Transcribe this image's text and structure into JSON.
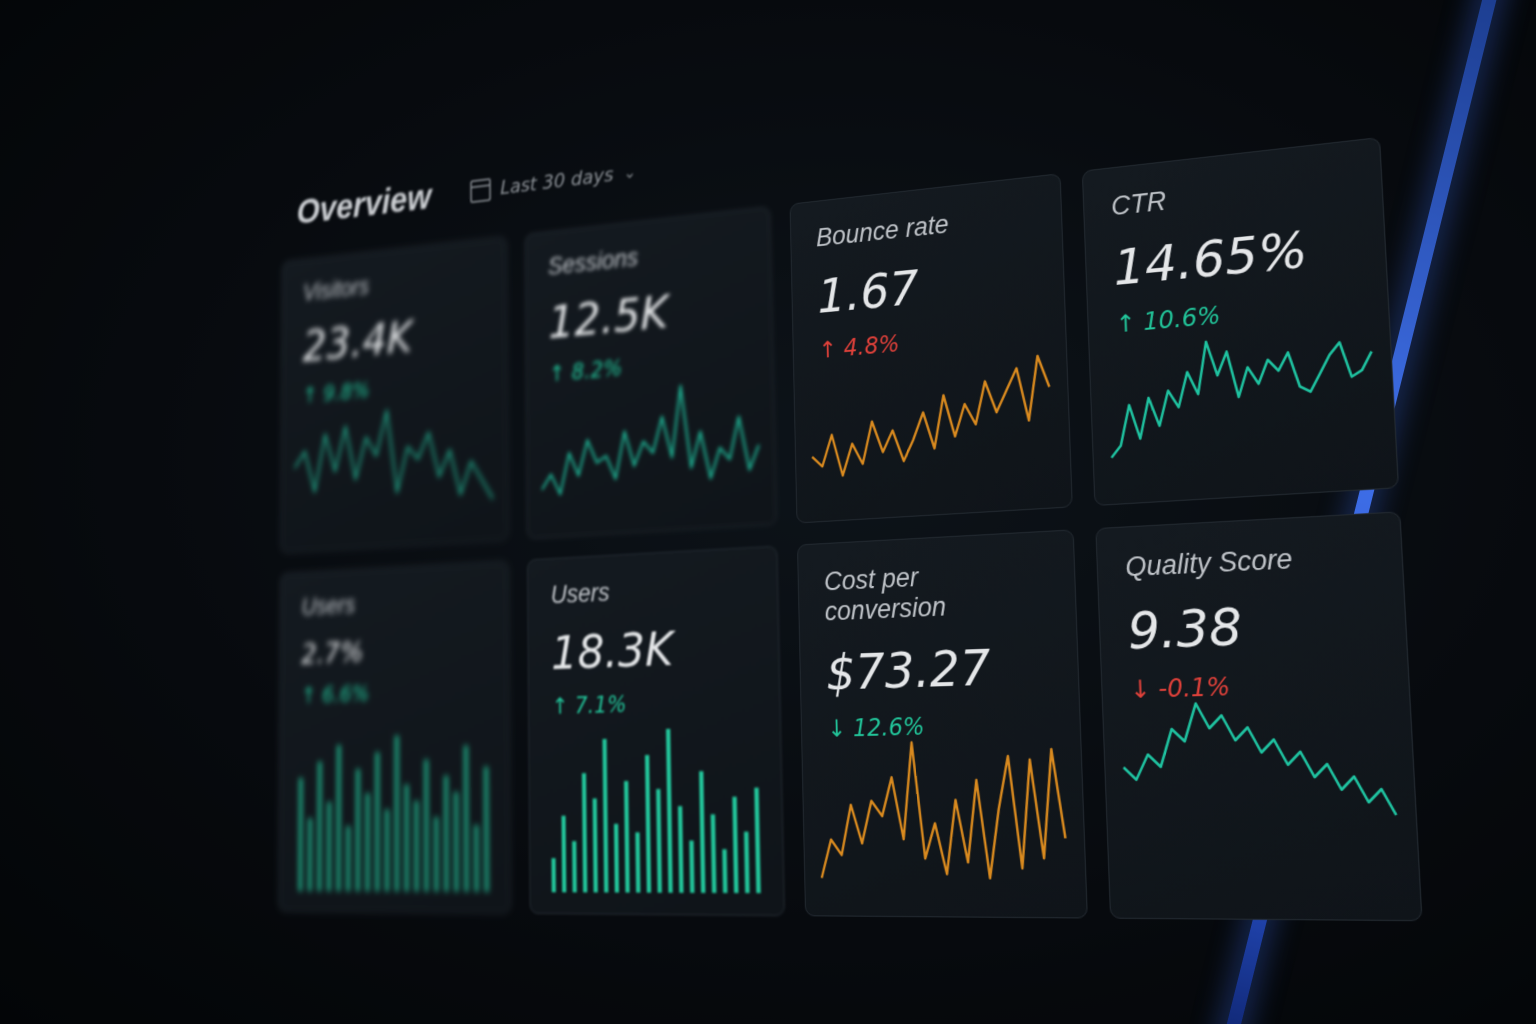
{
  "header": {
    "title": "Overview",
    "date_range": "Last 30 days"
  },
  "icons": {
    "calendar": "calendar-icon",
    "chevron": "chevron-down-icon",
    "up": "arrow-up-icon",
    "down": "arrow-down-icon"
  },
  "colors": {
    "green": "#22c59a",
    "red": "#e0413a",
    "orange": "#d98a1f",
    "accent_blue": "#3f6fe8"
  },
  "cards": [
    {
      "label": "Visitors",
      "value": "23.4K",
      "delta": "↑ 9.8%",
      "trend": "up-good",
      "chart": "line",
      "color": "#22a88a",
      "series": [
        50,
        55,
        42,
        60,
        48,
        62,
        45,
        58,
        52,
        66,
        40,
        54,
        50,
        58,
        44,
        52,
        38,
        48,
        42,
        36
      ]
    },
    {
      "label": "Sessions",
      "value": "12.5K",
      "delta": "↑ 8.2%",
      "trend": "up-good",
      "chart": "line",
      "color": "#1fb596",
      "series": [
        40,
        45,
        38,
        52,
        44,
        56,
        48,
        50,
        42,
        58,
        46,
        54,
        50,
        62,
        48,
        72,
        44,
        56,
        40,
        50,
        46,
        60,
        42,
        50
      ]
    },
    {
      "label": "Bounce rate",
      "value": "1.67",
      "delta": "↑ 4.8%",
      "trend": "up-bad",
      "chart": "line",
      "color": "#d98a1f",
      "series": [
        48,
        46,
        52,
        44,
        50,
        46,
        54,
        48,
        52,
        46,
        50,
        55,
        48,
        58,
        50,
        56,
        52,
        60,
        54,
        58,
        62,
        52,
        64,
        58
      ]
    },
    {
      "label": "CTR",
      "value": "14.65%",
      "delta": "↑ 10.6%",
      "trend": "up-good",
      "chart": "line",
      "color": "#1fc2a0",
      "series": [
        40,
        44,
        58,
        46,
        60,
        50,
        62,
        56,
        68,
        60,
        78,
        66,
        74,
        58,
        68,
        62,
        70,
        66,
        72,
        60,
        58,
        64,
        70,
        74,
        62,
        64,
        70
      ]
    },
    {
      "label": "Users",
      "value": "2.7%",
      "delta": "↑ 6.6%",
      "trend": "up-good",
      "chart": "bar",
      "color": "#1fa884",
      "series": [
        70,
        45,
        80,
        55,
        90,
        40,
        75,
        60,
        85,
        50,
        95,
        65,
        55,
        80,
        45,
        70,
        60,
        88,
        40,
        75
      ]
    },
    {
      "label": "Users",
      "value": "18.3K",
      "delta": "↑ 7.1%",
      "trend": "up-good",
      "chart": "bar",
      "color": "#22c59a",
      "series": [
        20,
        45,
        30,
        70,
        55,
        90,
        40,
        65,
        35,
        80,
        60,
        95,
        50,
        30,
        70,
        45,
        25,
        55,
        35,
        60
      ]
    },
    {
      "label": "Cost per conversion",
      "value": "$73.27",
      "delta": "↓ 12.6%",
      "trend": "down-good",
      "chart": "line",
      "color": "#d98a1f",
      "series": [
        20,
        40,
        32,
        58,
        38,
        60,
        52,
        72,
        40,
        90,
        30,
        48,
        22,
        60,
        28,
        70,
        20,
        55,
        82,
        25,
        80,
        30,
        85,
        40
      ]
    },
    {
      "label": "Quality Score",
      "value": "9.38",
      "delta": "↓ -0.1%",
      "trend": "down-bad",
      "chart": "line",
      "color": "#1fc2a0",
      "series": [
        55,
        54,
        56,
        55,
        58,
        57,
        60,
        58,
        59,
        57,
        58,
        56,
        57,
        55,
        56,
        54,
        55,
        53,
        54,
        52,
        53,
        51
      ]
    }
  ]
}
